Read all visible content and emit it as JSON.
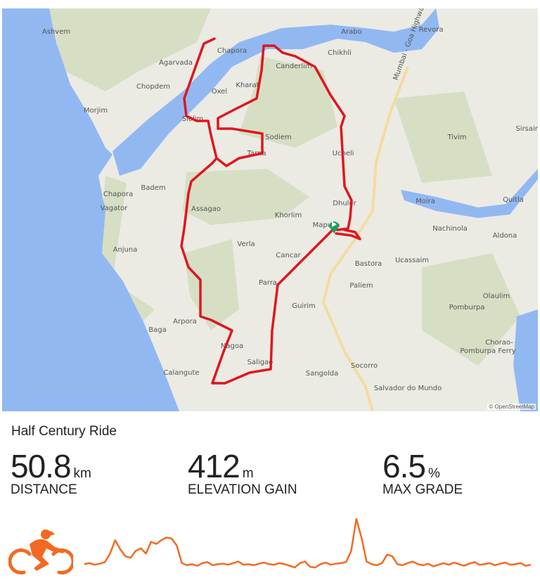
{
  "map": {
    "attribution": "© OpenStreetMap",
    "labels": [
      {
        "text": "Ashvem",
        "pos": [
          80,
          48
        ]
      },
      {
        "text": "Arabo",
        "pos": [
          500,
          48
        ]
      },
      {
        "text": "Revora",
        "pos": [
          613,
          45
        ]
      },
      {
        "text": "Chapora",
        "pos": [
          330,
          75
        ]
      },
      {
        "text": "Chikhli",
        "pos": [
          483,
          78
        ]
      },
      {
        "text": "Agarvada",
        "pos": [
          250,
          92
        ]
      },
      {
        "text": "Canderlim",
        "pos": [
          418,
          97
        ]
      },
      {
        "text": "Chopdem",
        "pos": [
          218,
          126
        ]
      },
      {
        "text": "Kharat",
        "pos": [
          352,
          124
        ]
      },
      {
        "text": "Oxel",
        "pos": [
          312,
          133
        ]
      },
      {
        "text": "Morjim",
        "pos": [
          136,
          160
        ]
      },
      {
        "text": "Siolim",
        "pos": [
          274,
          172
        ]
      },
      {
        "text": "Sodiem",
        "pos": [
          396,
          198
        ]
      },
      {
        "text": "Tivim",
        "pos": [
          650,
          198
        ]
      },
      {
        "text": "Sirsaim",
        "pos": [
          752,
          186
        ]
      },
      {
        "text": "Tarna",
        "pos": [
          365,
          221
        ]
      },
      {
        "text": "Ucheli",
        "pos": [
          488,
          221
        ]
      },
      {
        "text": "Badem",
        "pos": [
          218,
          270
        ]
      },
      {
        "text": "Chapora",
        "pos": [
          168,
          279
        ]
      },
      {
        "text": "Vagator",
        "pos": [
          162,
          299
        ]
      },
      {
        "text": "Assagao",
        "pos": [
          293,
          300
        ]
      },
      {
        "text": "Moira",
        "pos": [
          605,
          289
        ]
      },
      {
        "text": "Quitla",
        "pos": [
          730,
          287
        ]
      },
      {
        "text": "Khorlim",
        "pos": [
          410,
          309
        ]
      },
      {
        "text": "Dhuler",
        "pos": [
          490,
          292
        ]
      },
      {
        "text": "Mapusa",
        "pos": [
          464,
          323
        ]
      },
      {
        "text": "Nachinola",
        "pos": [
          640,
          328
        ]
      },
      {
        "text": "Aldona",
        "pos": [
          718,
          338
        ]
      },
      {
        "text": "Anjuna",
        "pos": [
          178,
          358
        ]
      },
      {
        "text": "Verla",
        "pos": [
          350,
          350
        ]
      },
      {
        "text": "Cancar",
        "pos": [
          410,
          366
        ]
      },
      {
        "text": "Bastora",
        "pos": [
          524,
          378
        ]
      },
      {
        "text": "Ucassaim",
        "pos": [
          586,
          373
        ]
      },
      {
        "text": "Parra",
        "pos": [
          381,
          405
        ]
      },
      {
        "text": "Paliem",
        "pos": [
          514,
          409
        ]
      },
      {
        "text": "Olaulim",
        "pos": [
          706,
          424
        ]
      },
      {
        "text": "Guirim",
        "pos": [
          432,
          438
        ]
      },
      {
        "text": "Pomburpa",
        "pos": [
          664,
          440
        ]
      },
      {
        "text": "Arpora",
        "pos": [
          263,
          460
        ]
      },
      {
        "text": "Baga",
        "pos": [
          224,
          472
        ]
      },
      {
        "text": "Chorao-",
        "pos": [
          710,
          490
        ]
      },
      {
        "text": "Pomburpa Ferry",
        "pos": [
          694,
          502
        ]
      },
      {
        "text": "Nagoa",
        "pos": [
          330,
          495
        ]
      },
      {
        "text": "Saligao",
        "pos": [
          370,
          518
        ]
      },
      {
        "text": "Socorro",
        "pos": [
          518,
          523
        ]
      },
      {
        "text": "Calangute",
        "pos": [
          258,
          533
        ]
      },
      {
        "text": "Sangolda",
        "pos": [
          458,
          534
        ]
      },
      {
        "text": "Salvador do Mundo",
        "pos": [
          580,
          555
        ]
      },
      {
        "text": "Mumbai - Goa Highway",
        "pos": [
          585,
          60
        ]
      }
    ],
    "colors": {
      "land": "#ebebe4",
      "forest": "#d6dfc4",
      "water": "#92b8f2",
      "route": "#e0161e",
      "road": "#f3dca0",
      "start": "#1f9e58"
    }
  },
  "activity": {
    "title": "Half Century Ride",
    "stats": [
      {
        "value": "50.8",
        "unit": "km",
        "label": "DISTANCE"
      },
      {
        "value": "412",
        "unit": "m",
        "label": "ELEVATION GAIN"
      },
      {
        "value": "6.5",
        "unit": "%",
        "label": "MAX GRADE"
      }
    ],
    "type_icon": "cycling-icon",
    "accent_color": "#f26a21",
    "elevation_profile": [
      10,
      12,
      9,
      11,
      14,
      30,
      55,
      38,
      25,
      22,
      35,
      40,
      30,
      52,
      48,
      55,
      60,
      58,
      45,
      12,
      8,
      10,
      7,
      12,
      14,
      8,
      10,
      11,
      9,
      12,
      15,
      9,
      10,
      8,
      11,
      13,
      10,
      9,
      12,
      10,
      7,
      4,
      12,
      15,
      5,
      4,
      10,
      13,
      9,
      11,
      12,
      14,
      35,
      95,
      60,
      15,
      10,
      8,
      12,
      28,
      25,
      10,
      8,
      12,
      15,
      10,
      8,
      11,
      6,
      9,
      12,
      9,
      13,
      10,
      7,
      11,
      14,
      9,
      10,
      12,
      8,
      11,
      13,
      9,
      10,
      12,
      7,
      9
    ]
  }
}
